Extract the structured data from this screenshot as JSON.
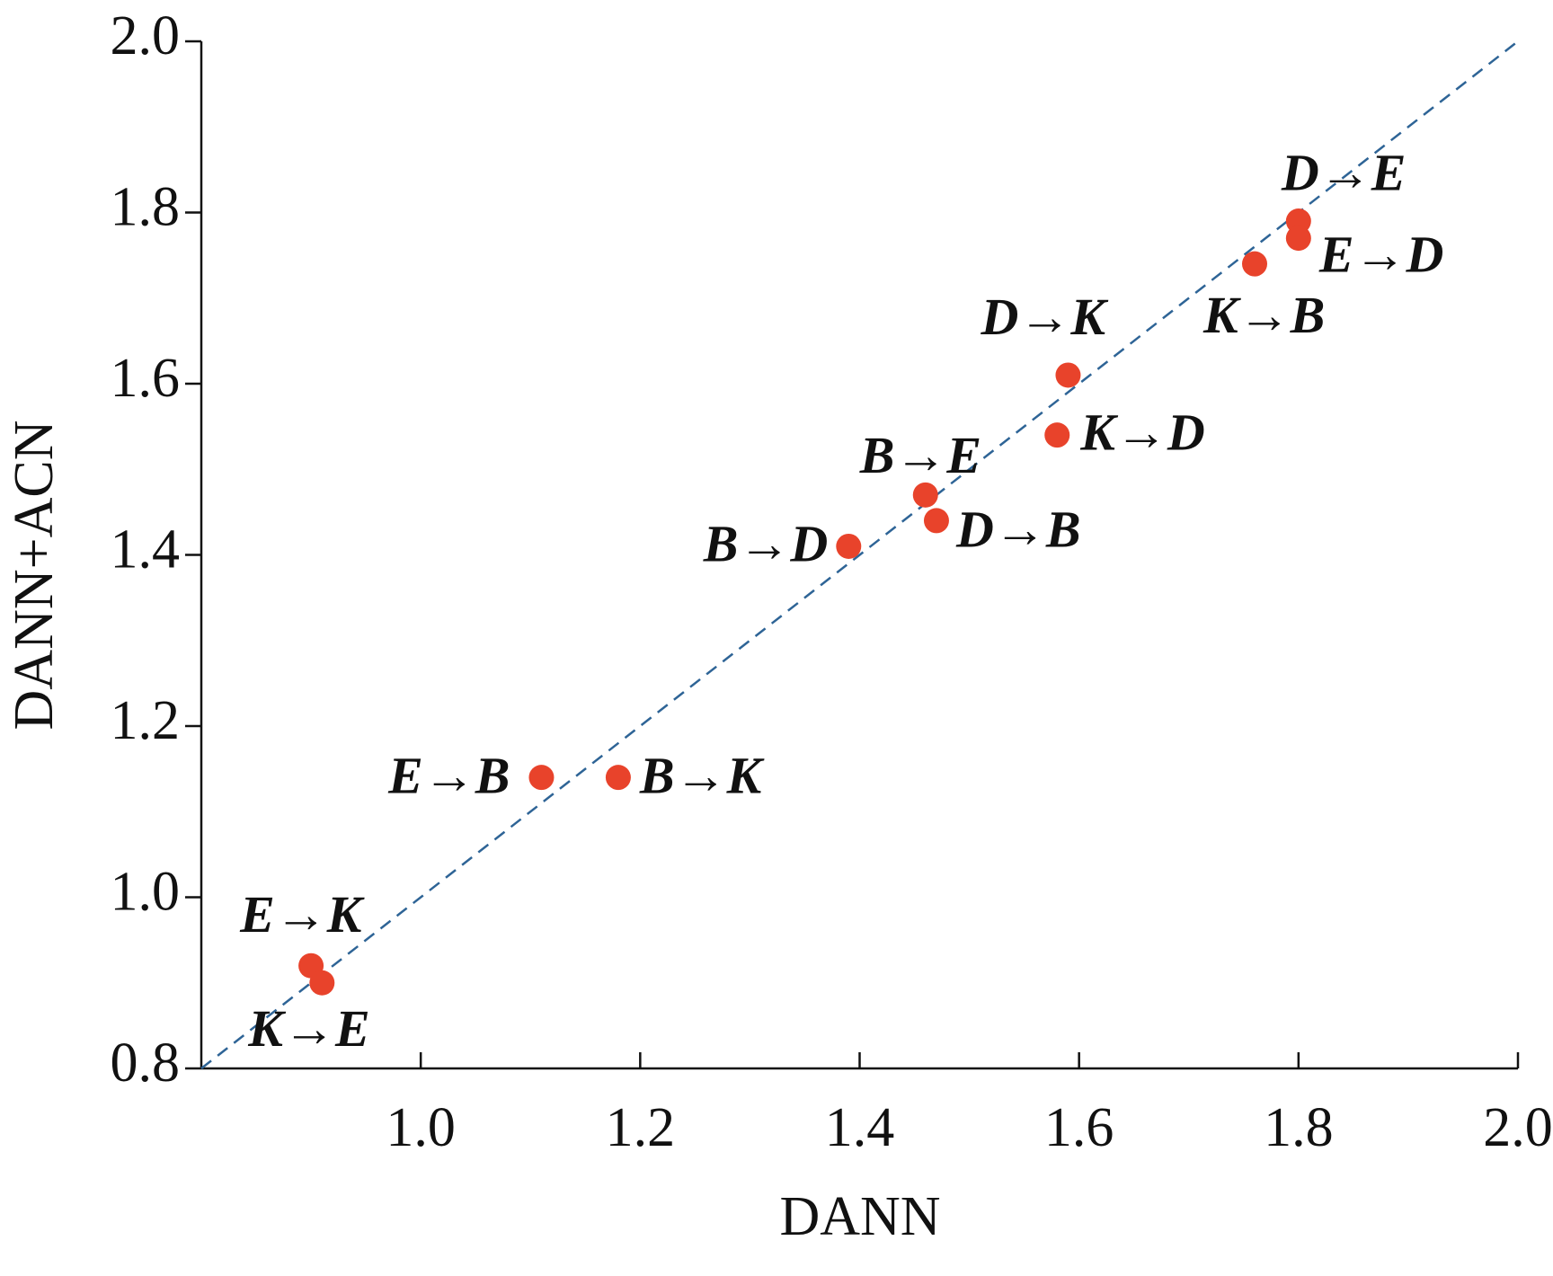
{
  "chart_data": {
    "type": "scatter",
    "x_label": "DANN",
    "y_label": "DANN+ACN",
    "xlim": [
      0.8,
      2.0
    ],
    "ylim": [
      0.8,
      2.0
    ],
    "xticks": [
      {
        "value": 1,
        "label": "1.0"
      },
      1.2,
      1.4,
      1.6,
      1.8,
      {
        "value": 2,
        "label": "2.0"
      }
    ],
    "yticks": [
      {
        "value": 0.8,
        "label": "0.8"
      },
      {
        "value": 1,
        "label": "1.0"
      },
      1.2,
      1.4,
      1.6,
      1.8,
      {
        "value": 2,
        "label": "2.0"
      }
    ],
    "color": "#e8432b",
    "reference_line": {
      "style": "dashed",
      "color": "#2e6496"
    },
    "labels": [
      "D→E",
      "E→D",
      "K→B",
      "D→K",
      "K→D",
      "B→E",
      "D→B",
      "B→D",
      "E→B",
      "B→K",
      "E→K",
      "K→E"
    ],
    "x": [
      1.8,
      1.8,
      1.76,
      1.59,
      1.58,
      1.46,
      1.47,
      1.39,
      1.11,
      1.18,
      0.9,
      0.91
    ],
    "y": [
      1.79,
      1.77,
      1.74,
      1.61,
      1.54,
      1.47,
      1.44,
      1.41,
      1.14,
      1.14,
      0.92,
      0.9
    ]
  }
}
